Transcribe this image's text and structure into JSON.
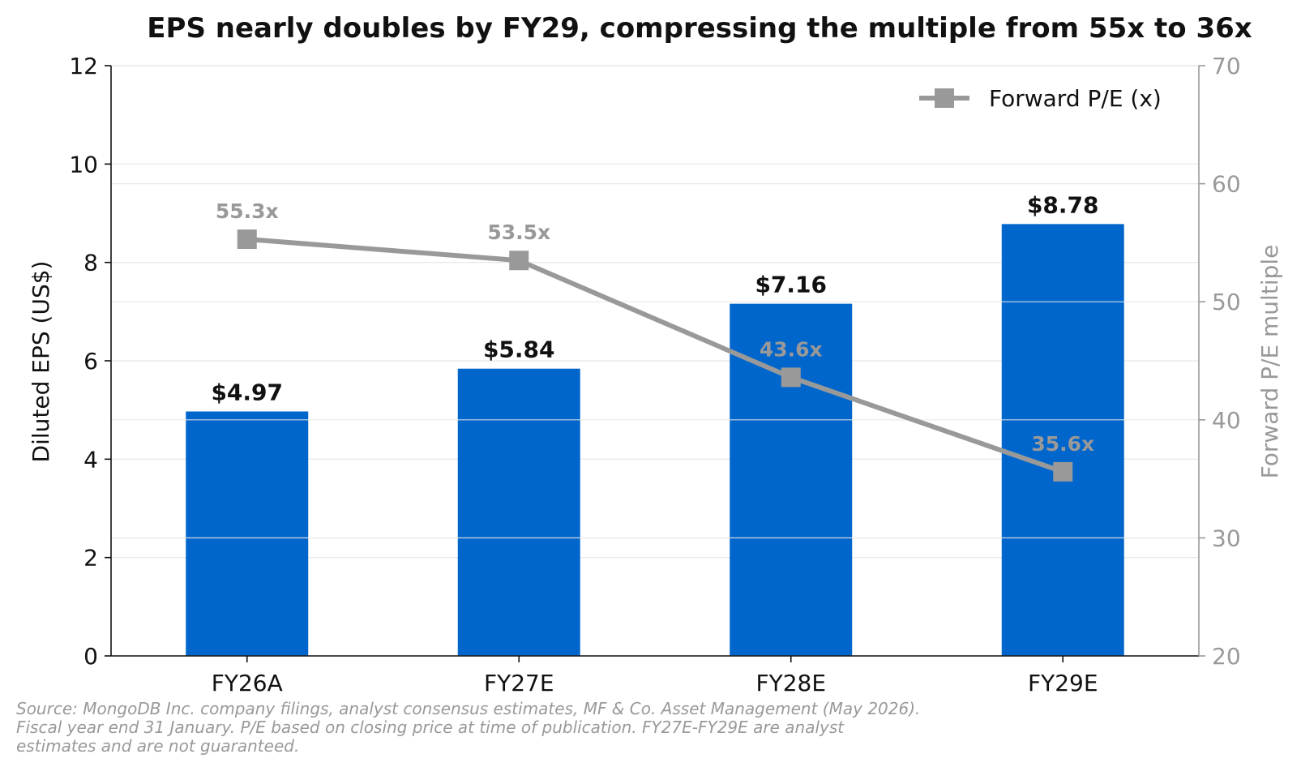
{
  "chart_data": {
    "type": "bar",
    "title": "EPS nearly doubles by FY29, compressing the multiple from 55x to 36x",
    "categories": [
      "FY26A",
      "FY27E",
      "FY28E",
      "FY29E"
    ],
    "series": [
      {
        "name": "",
        "kind": "bar",
        "axis": "left",
        "values": [
          4.97,
          5.84,
          7.16,
          8.78
        ],
        "labels": [
          "$4.97",
          "$5.84",
          "$7.16",
          "$8.78"
        ]
      },
      {
        "name": "Forward P/E (x)",
        "kind": "line",
        "axis": "right",
        "values": [
          55.3,
          53.5,
          43.6,
          35.6
        ],
        "labels": [
          "55.3x",
          "53.5x",
          "43.6x",
          "35.6x"
        ]
      }
    ],
    "ylabel": "Diluted EPS (US$)",
    "ylim": [
      0,
      12
    ],
    "yticks": [
      "0",
      "2",
      "4",
      "6",
      "8",
      "10",
      "12"
    ],
    "y2label": "Forward P/E multiple",
    "y2lim": [
      20,
      70
    ],
    "y2ticks": [
      "20",
      "30",
      "40",
      "50",
      "60",
      "70"
    ],
    "grid": true,
    "legend_position": "top-right",
    "colors": {
      "bar": "#0066cc",
      "line": "#999999",
      "axis2": "#999999",
      "text": "#111111"
    }
  },
  "footnote": [
    "Source: MongoDB Inc. company filings, analyst consensus estimates, MF & Co. Asset Management (May 2026).",
    "Fiscal year end 31 January. P/E based on closing price at time of publication. FY27E-FY29E are analyst",
    "estimates and are not guaranteed."
  ]
}
